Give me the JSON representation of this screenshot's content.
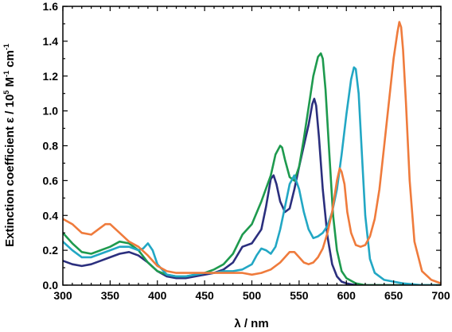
{
  "chart_data": {
    "type": "line",
    "title": "",
    "xlabel": "λ / nm",
    "ylabel": {
      "main": "Extinction coefficient ε / 10",
      "exp1": "5",
      "unit_mid": " M",
      "exp2": "-1",
      "unit_end": " cm",
      "exp3": "-1"
    },
    "xlim": [
      300,
      700
    ],
    "ylim": [
      0,
      1.6
    ],
    "xticks": [
      "300",
      "350",
      "400",
      "450",
      "500",
      "550",
      "600",
      "650",
      "700"
    ],
    "yticks": [
      "0.0",
      "0.2",
      "0.4",
      "0.6",
      "0.8",
      "1.0",
      "1.2",
      "1.4",
      "1.6"
    ],
    "grid": false,
    "legend": "none",
    "series": [
      {
        "color": "#2b2f7e",
        "x": [
          300,
          310,
          320,
          330,
          340,
          350,
          360,
          370,
          380,
          390,
          400,
          410,
          420,
          430,
          440,
          450,
          460,
          470,
          480,
          490,
          500,
          510,
          515,
          520,
          523,
          526,
          530,
          535,
          540,
          545,
          550,
          555,
          560,
          564,
          566,
          568,
          571,
          575,
          580,
          585,
          590,
          595,
          600,
          610,
          620,
          650,
          700
        ],
        "y": [
          0.14,
          0.12,
          0.11,
          0.12,
          0.14,
          0.16,
          0.18,
          0.19,
          0.17,
          0.13,
          0.08,
          0.05,
          0.04,
          0.04,
          0.05,
          0.06,
          0.07,
          0.09,
          0.13,
          0.22,
          0.24,
          0.32,
          0.45,
          0.61,
          0.63,
          0.58,
          0.48,
          0.42,
          0.44,
          0.55,
          0.68,
          0.8,
          0.92,
          1.04,
          1.07,
          1.03,
          0.85,
          0.55,
          0.28,
          0.12,
          0.05,
          0.02,
          0.01,
          0.0,
          0.0,
          0.0,
          0.0
        ]
      },
      {
        "color": "#1e9a4e",
        "x": [
          300,
          310,
          320,
          330,
          340,
          350,
          360,
          370,
          380,
          390,
          400,
          410,
          420,
          430,
          440,
          450,
          460,
          470,
          480,
          490,
          500,
          510,
          520,
          525,
          530,
          532,
          535,
          540,
          545,
          550,
          555,
          560,
          565,
          570,
          573,
          575,
          578,
          582,
          586,
          590,
          595,
          600,
          610,
          620,
          650,
          700
        ],
        "y": [
          0.3,
          0.24,
          0.19,
          0.18,
          0.2,
          0.22,
          0.25,
          0.24,
          0.2,
          0.13,
          0.08,
          0.06,
          0.05,
          0.05,
          0.06,
          0.07,
          0.09,
          0.12,
          0.18,
          0.29,
          0.35,
          0.48,
          0.63,
          0.75,
          0.8,
          0.79,
          0.72,
          0.62,
          0.6,
          0.68,
          0.84,
          1.02,
          1.2,
          1.31,
          1.33,
          1.3,
          1.12,
          0.75,
          0.4,
          0.2,
          0.08,
          0.04,
          0.01,
          0.0,
          0.0,
          0.0
        ]
      },
      {
        "color": "#22a7c4",
        "x": [
          300,
          310,
          320,
          330,
          340,
          350,
          360,
          370,
          380,
          385,
          390,
          395,
          400,
          410,
          420,
          430,
          440,
          450,
          460,
          470,
          480,
          490,
          500,
          505,
          510,
          515,
          520,
          525,
          530,
          535,
          540,
          545,
          550,
          555,
          560,
          565,
          570,
          575,
          580,
          585,
          590,
          595,
          600,
          605,
          608,
          610,
          613,
          617,
          620,
          625,
          630,
          640,
          650,
          660,
          680,
          700
        ],
        "y": [
          0.25,
          0.2,
          0.16,
          0.16,
          0.18,
          0.2,
          0.22,
          0.22,
          0.2,
          0.21,
          0.24,
          0.2,
          0.12,
          0.06,
          0.05,
          0.05,
          0.06,
          0.07,
          0.07,
          0.08,
          0.08,
          0.09,
          0.12,
          0.17,
          0.21,
          0.2,
          0.18,
          0.22,
          0.32,
          0.45,
          0.58,
          0.63,
          0.55,
          0.42,
          0.32,
          0.27,
          0.28,
          0.3,
          0.34,
          0.42,
          0.55,
          0.75,
          0.98,
          1.18,
          1.25,
          1.24,
          1.1,
          0.7,
          0.4,
          0.15,
          0.07,
          0.03,
          0.02,
          0.01,
          0.0,
          0.0
        ]
      },
      {
        "color": "#ef7b3c",
        "x": [
          300,
          310,
          320,
          330,
          340,
          345,
          350,
          360,
          370,
          380,
          390,
          400,
          410,
          420,
          430,
          440,
          450,
          460,
          470,
          480,
          490,
          500,
          510,
          520,
          530,
          540,
          545,
          550,
          555,
          560,
          565,
          570,
          575,
          580,
          585,
          590,
          593,
          595,
          598,
          601,
          605,
          610,
          615,
          620,
          625,
          630,
          635,
          640,
          645,
          650,
          654,
          656,
          658,
          660,
          663,
          667,
          672,
          680,
          690,
          700
        ],
        "y": [
          0.38,
          0.35,
          0.3,
          0.29,
          0.33,
          0.35,
          0.35,
          0.3,
          0.25,
          0.22,
          0.17,
          0.11,
          0.08,
          0.07,
          0.07,
          0.07,
          0.07,
          0.07,
          0.07,
          0.07,
          0.07,
          0.06,
          0.07,
          0.09,
          0.13,
          0.19,
          0.19,
          0.16,
          0.13,
          0.12,
          0.13,
          0.16,
          0.21,
          0.3,
          0.42,
          0.6,
          0.67,
          0.65,
          0.58,
          0.42,
          0.3,
          0.23,
          0.22,
          0.23,
          0.28,
          0.38,
          0.55,
          0.8,
          1.05,
          1.3,
          1.45,
          1.51,
          1.48,
          1.35,
          1.05,
          0.6,
          0.25,
          0.08,
          0.03,
          0.01
        ]
      }
    ]
  }
}
